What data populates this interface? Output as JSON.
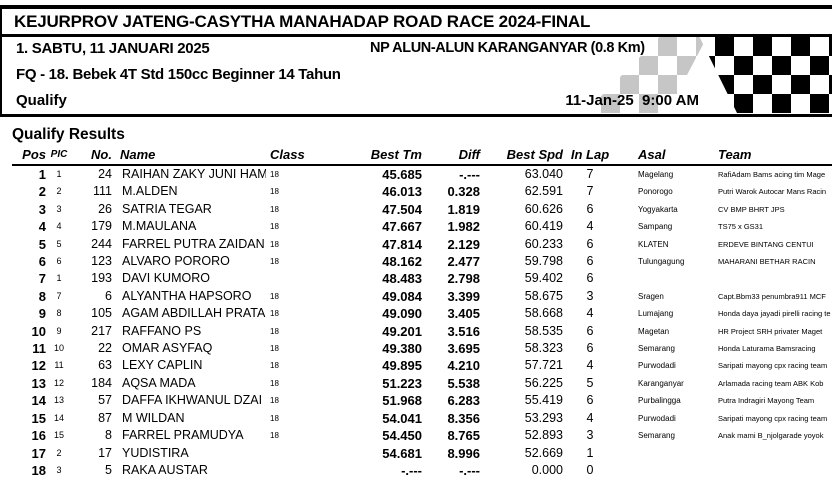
{
  "header": {
    "title": "KEJURPROV JATENG-CASYTHA MANAHADAP ROAD RACE 2024-FINAL",
    "event_day": "1. SABTU, 11 JANUARI 2025",
    "venue": "NP ALUN-ALUN KARANGANYAR (0.8 Km)",
    "race_class": "FQ - 18. Bebek 4T Std 150cc Beginner 14 Tahun",
    "session": "Qualify",
    "datetime": "11-Jan-25  9:00 AM",
    "flag_icon": "checkered-flag",
    "accent_colors": {
      "black": "#000000",
      "gray_check": "#c6c6c6",
      "white": "#ffffff"
    }
  },
  "results": {
    "title": "Qualify Results",
    "columns": {
      "pos": "Pos",
      "pic": "PIC",
      "no": "No.",
      "name": "Name",
      "class": "Class",
      "best_tm": "Best Tm",
      "diff": "Diff",
      "best_spd": "Best Spd",
      "in_lap": "In Lap",
      "asal": "Asal",
      "team": "Team"
    },
    "rows": [
      {
        "pos": "1",
        "pic": "1",
        "no": "24",
        "name": "RAIHAN ZAKY JUNI HAM",
        "class": "18",
        "best_tm": "45.685",
        "diff": "-.---",
        "best_spd": "63.040",
        "in_lap": "7",
        "asal": "Magelang",
        "team": "RafiAdam Bams acing tim Mage"
      },
      {
        "pos": "2",
        "pic": "2",
        "no": "111",
        "name": "M.ALDEN",
        "class": "18",
        "best_tm": "46.013",
        "diff": "0.328",
        "best_spd": "62.591",
        "in_lap": "7",
        "asal": "Ponorogo",
        "team": "Putri Warok Autocar Mans Racin"
      },
      {
        "pos": "3",
        "pic": "3",
        "no": "26",
        "name": "SATRIA TEGAR",
        "class": "18",
        "best_tm": "47.504",
        "diff": "1.819",
        "best_spd": "60.626",
        "in_lap": "6",
        "asal": "Yogyakarta",
        "team": "CV BMP BHRT JPS"
      },
      {
        "pos": "4",
        "pic": "4",
        "no": "179",
        "name": "M.MAULANA",
        "class": "18",
        "best_tm": "47.667",
        "diff": "1.982",
        "best_spd": "60.419",
        "in_lap": "4",
        "asal": "Sampang",
        "team": "TS75 x GS31"
      },
      {
        "pos": "5",
        "pic": "5",
        "no": "244",
        "name": "FARREL PUTRA ZAIDAN",
        "class": "18",
        "best_tm": "47.814",
        "diff": "2.129",
        "best_spd": "60.233",
        "in_lap": "6",
        "asal": "KLATEN",
        "team": "ERDEVE BINTANG CENTUI"
      },
      {
        "pos": "6",
        "pic": "6",
        "no": "123",
        "name": "ALVARO PORORO",
        "class": "18",
        "best_tm": "48.162",
        "diff": "2.477",
        "best_spd": "59.798",
        "in_lap": "6",
        "asal": "Tulungagung",
        "team": "MAHARANI BETHAR RACIN"
      },
      {
        "pos": "7",
        "pic": "1",
        "no": "193",
        "name": "DAVI KUMORO",
        "class": "",
        "best_tm": "48.483",
        "diff": "2.798",
        "best_spd": "59.402",
        "in_lap": "6",
        "asal": "",
        "team": ""
      },
      {
        "pos": "8",
        "pic": "7",
        "no": "6",
        "name": "ALYANTHA HAPSORO",
        "class": "18",
        "best_tm": "49.084",
        "diff": "3.399",
        "best_spd": "58.675",
        "in_lap": "3",
        "asal": "Sragen",
        "team": "Capt.Bbm33 penumbra911 MCF"
      },
      {
        "pos": "9",
        "pic": "8",
        "no": "105",
        "name": "AGAM ABDILLAH PRATA",
        "class": "18",
        "best_tm": "49.090",
        "diff": "3.405",
        "best_spd": "58.668",
        "in_lap": "4",
        "asal": "Lumajang",
        "team": "Honda daya jayadi pirelli racing te"
      },
      {
        "pos": "10",
        "pic": "9",
        "no": "217",
        "name": "RAFFANO PS",
        "class": "18",
        "best_tm": "49.201",
        "diff": "3.516",
        "best_spd": "58.535",
        "in_lap": "6",
        "asal": "Magetan",
        "team": "HR Project SRH privater Maget"
      },
      {
        "pos": "11",
        "pic": "10",
        "no": "22",
        "name": "OMAR ASYFAQ",
        "class": "18",
        "best_tm": "49.380",
        "diff": "3.695",
        "best_spd": "58.323",
        "in_lap": "6",
        "asal": "Semarang",
        "team": "Honda Laturama Bamsracing"
      },
      {
        "pos": "12",
        "pic": "11",
        "no": "63",
        "name": "LEXY CAPLIN",
        "class": "18",
        "best_tm": "49.895",
        "diff": "4.210",
        "best_spd": "57.721",
        "in_lap": "4",
        "asal": "Purwodadi",
        "team": "Saripati mayong cpx racing team"
      },
      {
        "pos": "13",
        "pic": "12",
        "no": "184",
        "name": "AQSA MADA",
        "class": "18",
        "best_tm": "51.223",
        "diff": "5.538",
        "best_spd": "56.225",
        "in_lap": "5",
        "asal": "Karanganyar",
        "team": "Arlamada racing team ABK Kob"
      },
      {
        "pos": "14",
        "pic": "13",
        "no": "57",
        "name": "DAFFA IKHWANUL DZAI",
        "class": "18",
        "best_tm": "51.968",
        "diff": "6.283",
        "best_spd": "55.419",
        "in_lap": "6",
        "asal": "Purbalingga",
        "team": "Putra Indragiri Mayong Team"
      },
      {
        "pos": "15",
        "pic": "14",
        "no": "87",
        "name": "M WILDAN",
        "class": "18",
        "best_tm": "54.041",
        "diff": "8.356",
        "best_spd": "53.293",
        "in_lap": "4",
        "asal": "Purwodadi",
        "team": "Saripati mayong cpx racing team"
      },
      {
        "pos": "16",
        "pic": "15",
        "no": "8",
        "name": "FARREL PRAMUDYA",
        "class": "18",
        "best_tm": "54.450",
        "diff": "8.765",
        "best_spd": "52.893",
        "in_lap": "3",
        "asal": "Semarang",
        "team": "Anak mami B_njolgarade yoyok"
      },
      {
        "pos": "17",
        "pic": "2",
        "no": "17",
        "name": "YUDISTIRA",
        "class": "",
        "best_tm": "54.681",
        "diff": "8.996",
        "best_spd": "52.669",
        "in_lap": "1",
        "asal": "",
        "team": ""
      },
      {
        "pos": "18",
        "pic": "3",
        "no": "5",
        "name": "RAKA AUSTAR",
        "class": "",
        "best_tm": "-.---",
        "diff": "-.---",
        "best_spd": "0.000",
        "in_lap": "0",
        "asal": "",
        "team": ""
      }
    ]
  }
}
